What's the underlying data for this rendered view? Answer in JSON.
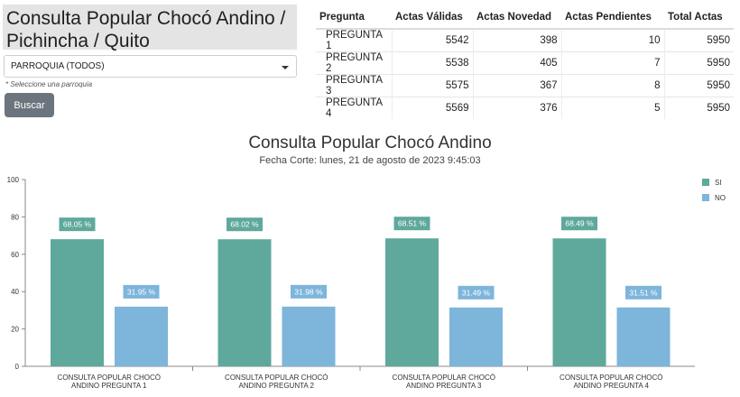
{
  "header": {
    "title": "Consulta Popular Chocó Andino / Pichincha / Quito"
  },
  "filter": {
    "selected": "PARROQUIA (TODOS)",
    "hint": "* Seleccione una parroquia",
    "button_label": "Buscar"
  },
  "summary_table": {
    "columns": [
      "Pregunta",
      "Actas Válidas",
      "Actas Novedad",
      "Actas Pendientes",
      "Total Actas"
    ],
    "rows": [
      [
        "PREGUNTA 1",
        "5542",
        "398",
        "10",
        "5950"
      ],
      [
        "PREGUNTA 2",
        "5538",
        "405",
        "7",
        "5950"
      ],
      [
        "PREGUNTA 3",
        "5575",
        "367",
        "8",
        "5950"
      ],
      [
        "PREGUNTA 4",
        "5569",
        "376",
        "5",
        "5950"
      ]
    ]
  },
  "colors": {
    "si": "#5fa89c",
    "no": "#7db5db",
    "label_bg_si": "#5fa89c",
    "label_bg_no": "#7db5db",
    "axis": "#888888",
    "grid": "#dddddd"
  },
  "chart_data": {
    "type": "bar",
    "title": "Consulta Popular Chocó Andino",
    "subtitle": "Fecha Corte: lunes, 21 de agosto de 2023 9:45:03",
    "categories": [
      "CONSULTA POPULAR CHOCÓ ANDINO PREGUNTA 1",
      "CONSULTA POPULAR CHOCÓ ANDINO PREGUNTA 2",
      "CONSULTA POPULAR CHOCÓ ANDINO PREGUNTA 3",
      "CONSULTA POPULAR CHOCÓ ANDINO PREGUNTA 4"
    ],
    "category_lines": [
      [
        "CONSULTA POPULAR CHOCÓ",
        "ANDINO PREGUNTA 1"
      ],
      [
        "CONSULTA POPULAR CHOCÓ",
        "ANDINO PREGUNTA 2"
      ],
      [
        "CONSULTA POPULAR CHOCÓ",
        "ANDINO PREGUNTA 3"
      ],
      [
        "CONSULTA POPULAR CHOCÓ",
        "ANDINO PREGUNTA 4"
      ]
    ],
    "series": [
      {
        "name": "SI",
        "values": [
          68.05,
          68.02,
          68.51,
          68.49
        ],
        "labels": [
          "68.05 %",
          "68.02 %",
          "68.51 %",
          "68.49 %"
        ]
      },
      {
        "name": "NO",
        "values": [
          31.95,
          31.98,
          31.49,
          31.51
        ],
        "labels": [
          "31.95 %",
          "31.98 %",
          "31.49 %",
          "31.51 %"
        ]
      }
    ],
    "ylim": [
      0,
      100
    ],
    "yticks": [
      0,
      20,
      40,
      60,
      80,
      100
    ],
    "grid": false,
    "legend": "top-right"
  }
}
